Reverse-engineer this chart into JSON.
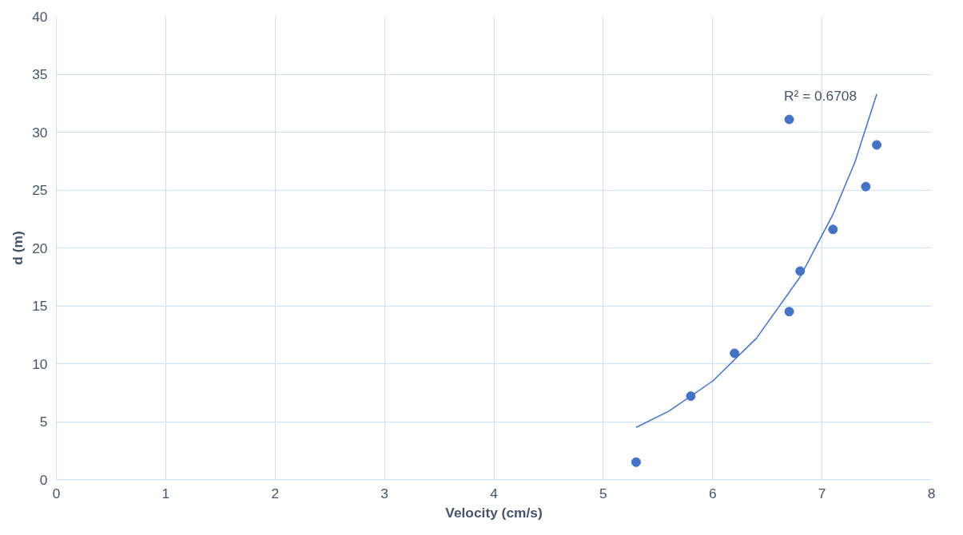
{
  "chart_data": {
    "type": "scatter",
    "xlabel": "Velocity (cm/s)",
    "ylabel": "d (m)",
    "xlim": [
      0,
      8
    ],
    "xticks": [
      0,
      1,
      2,
      3,
      4,
      5,
      6,
      7,
      8
    ],
    "ylim": [
      0,
      40
    ],
    "yticks": [
      0,
      5,
      10,
      15,
      20,
      25,
      30,
      35,
      40
    ],
    "grid": true,
    "series": [
      {
        "color": "#4472c4",
        "marker": "circle",
        "x": [
          5.3,
          5.8,
          6.2,
          6.7,
          6.7,
          6.8,
          7.1,
          7.4,
          7.5
        ],
        "values": [
          1.5,
          7.2,
          10.9,
          31.1,
          14.5,
          18.0,
          21.6,
          25.3,
          28.9
        ]
      },
      {
        "type": "line",
        "color": "#4472c4",
        "x": [
          5.3,
          5.6,
          6.0,
          6.4,
          6.8,
          7.1,
          7.3,
          7.5
        ],
        "values": [
          4.5,
          5.9,
          8.5,
          12.2,
          17.5,
          22.9,
          27.4,
          33.3
        ]
      }
    ],
    "annotations": [
      "R² = 0.6708"
    ]
  }
}
